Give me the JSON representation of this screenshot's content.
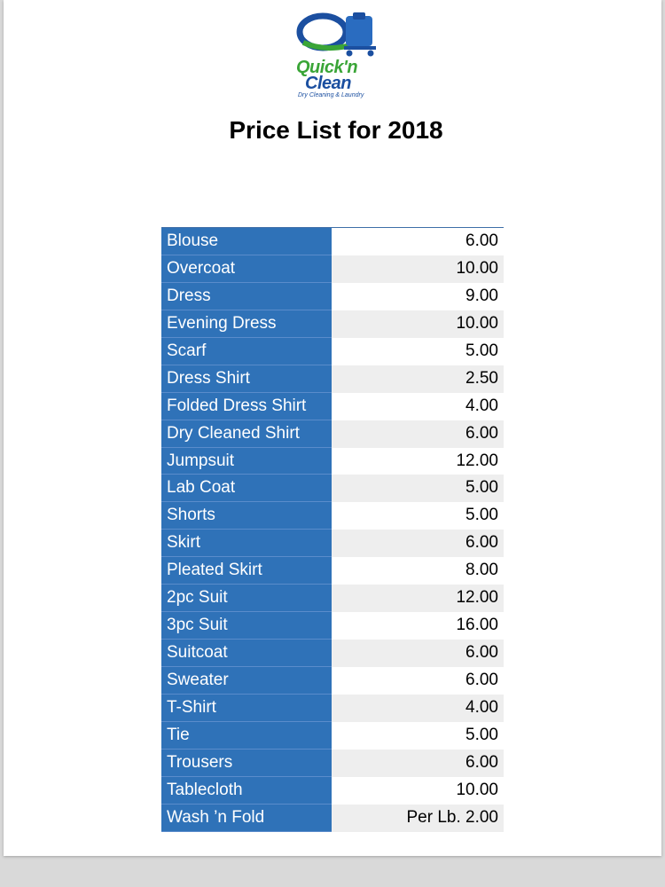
{
  "logo": {
    "line1": "Quick'n",
    "line2": "Clean",
    "tagline": "Dry Cleaning & Laundry"
  },
  "title": "Price List for 2018",
  "items": [
    {
      "name": "Blouse",
      "price": "6.00"
    },
    {
      "name": "Overcoat",
      "price": "10.00"
    },
    {
      "name": "Dress",
      "price": "9.00"
    },
    {
      "name": "Evening Dress",
      "price": "10.00"
    },
    {
      "name": "Scarf",
      "price": "5.00"
    },
    {
      "name": "Dress Shirt",
      "price": "2.50"
    },
    {
      "name": "Folded Dress Shirt",
      "price": "4.00"
    },
    {
      "name": "Dry Cleaned Shirt",
      "price": "6.00"
    },
    {
      "name": "Jumpsuit",
      "price": "12.00"
    },
    {
      "name": "Lab Coat",
      "price": "5.00"
    },
    {
      "name": "Shorts",
      "price": "5.00"
    },
    {
      "name": "Skirt",
      "price": "6.00"
    },
    {
      "name": "Pleated Skirt",
      "price": "8.00"
    },
    {
      "name": "2pc Suit",
      "price": "12.00"
    },
    {
      "name": "3pc Suit",
      "price": "16.00"
    },
    {
      "name": "Suitcoat",
      "price": "6.00"
    },
    {
      "name": "Sweater",
      "price": "6.00"
    },
    {
      "name": "T-Shirt",
      "price": "4.00"
    },
    {
      "name": "Tie",
      "price": "5.00"
    },
    {
      "name": "Trousers",
      "price": "6.00"
    },
    {
      "name": "Tablecloth",
      "price": "10.00"
    },
    {
      "name": "Wash ’n Fold",
      "price": "Per Lb. 2.00"
    }
  ],
  "colors": {
    "name_column": "#2f72b8",
    "brand_green": "#3aa537",
    "brand_blue": "#1b4fa0"
  }
}
